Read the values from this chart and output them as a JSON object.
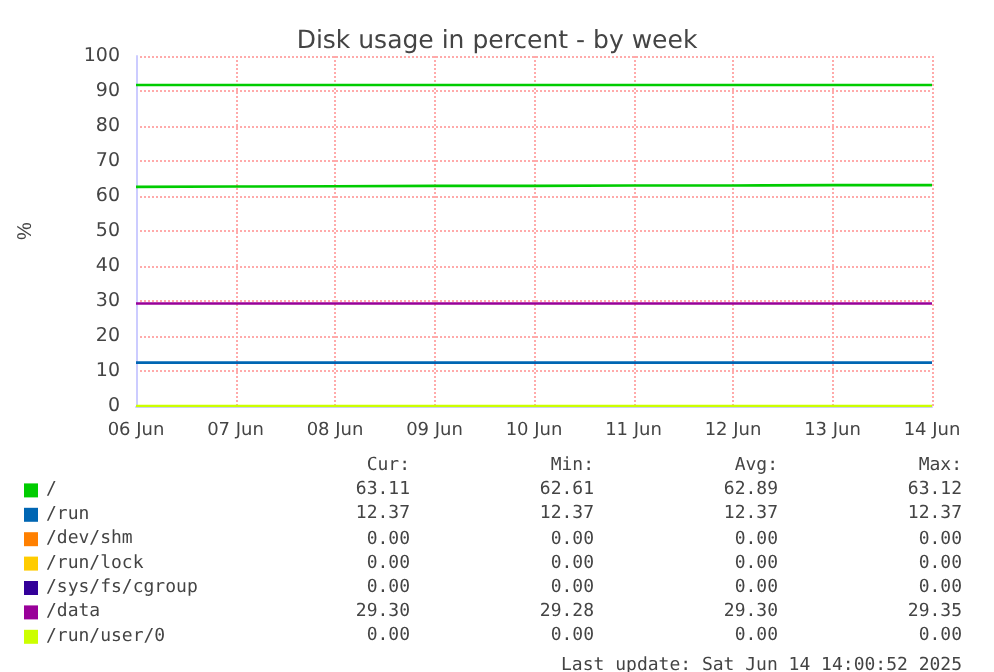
{
  "chart_data": {
    "type": "line",
    "title": "Disk usage in percent - by week",
    "ylabel": "%",
    "categories": [
      "06 Jun",
      "07 Jun",
      "08 Jun",
      "09 Jun",
      "10 Jun",
      "11 Jun",
      "12 Jun",
      "13 Jun",
      "14 Jun"
    ],
    "series": [
      {
        "name": "/",
        "color": "#00cc00",
        "values": [
          62.6,
          62.7,
          62.8,
          62.9,
          62.9,
          63.0,
          63.0,
          63.1,
          63.1
        ]
      },
      {
        "name": "/run",
        "color": "#0066b3",
        "values": [
          12.4,
          12.4,
          12.4,
          12.4,
          12.4,
          12.4,
          12.4,
          12.4,
          12.4
        ]
      },
      {
        "name": "/dev/shm",
        "color": "#ff8000",
        "values": [
          null,
          null,
          null,
          null,
          null,
          null,
          null,
          null,
          null
        ]
      },
      {
        "name": "/run/lock",
        "color": "#ffcc00",
        "values": [
          null,
          null,
          null,
          null,
          null,
          null,
          null,
          null,
          null
        ]
      },
      {
        "name": "/sys/fs/cgroup",
        "color": "#330099",
        "values": [
          null,
          null,
          null,
          null,
          null,
          null,
          null,
          null,
          null
        ]
      },
      {
        "name": "/data",
        "color": "#990099",
        "values": [
          29.3,
          29.3,
          29.3,
          29.3,
          29.3,
          29.3,
          29.3,
          29.3,
          29.3
        ]
      },
      {
        "name": "/run/user/0",
        "color": "#ccff00",
        "values": [
          0,
          0,
          0,
          0,
          0,
          0,
          0,
          0,
          0
        ]
      }
    ],
    "ylim": [
      0,
      100
    ],
    "yticks": [
      0,
      10,
      20,
      30,
      40,
      50,
      60,
      70,
      80,
      90,
      100
    ],
    "grid": true,
    "legend": "bottom",
    "marker": "none",
    "line_style": "solid",
    "ref_lines": [
      {
        "axis": "y",
        "value": 92,
        "color": "#00cc00"
      }
    ],
    "annotations": [
      "Cur:",
      "Min:",
      "Avg:",
      "Max:",
      "63.11",
      "62.61",
      "62.89",
      "63.12",
      "12.37",
      "12.37",
      "12.37",
      "12.37",
      "0.00",
      "0.00",
      "0.00",
      "0.00",
      "0.00",
      "0.00",
      "0.00",
      "0.00",
      "0.00",
      "0.00",
      "0.00",
      "0.00",
      "29.30",
      "29.28",
      "29.30",
      "29.35",
      "0.00",
      "0.00",
      "0.00",
      "0.00",
      "Last update: Sat Jun 14 14:00:52 2025"
    ]
  }
}
